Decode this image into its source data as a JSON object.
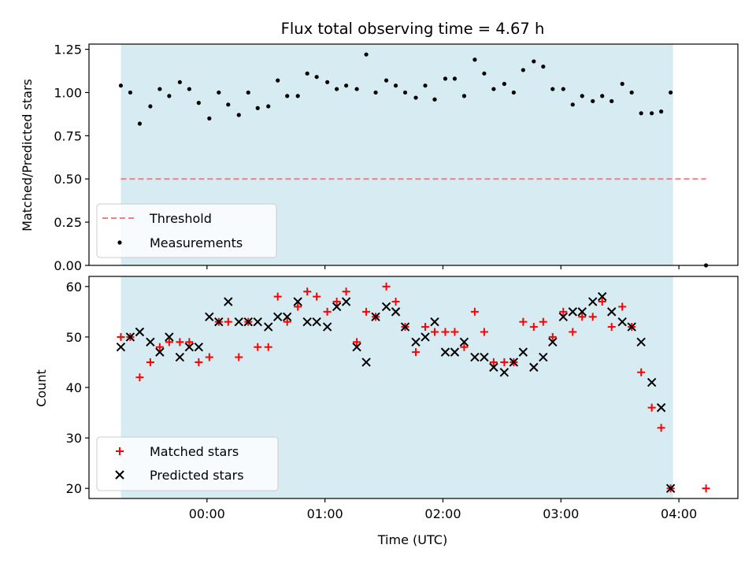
{
  "chart_data": [
    {
      "type": "scatter",
      "title": "Flux total observing time = 4.67 h",
      "ylabel": "Matched/Predicted stars",
      "xlabel": "",
      "ylim": [
        0,
        1.28
      ],
      "yticks": [
        "0.00",
        "0.25",
        "0.50",
        "0.75",
        "1.00",
        "1.25"
      ],
      "shaded_region_color": "#add8e6",
      "grid": false,
      "legend": "lower-left",
      "series": [
        {
          "name": "Threshold",
          "style": "dashed-line",
          "color": "#f08080",
          "x_start_h": -0.73,
          "x_end_h": 4.23,
          "value": 0.5
        },
        {
          "name": "Measurements",
          "style": "dot",
          "color": "#000000",
          "points": [
            [
              -0.73,
              1.04
            ],
            [
              -0.65,
              1.0
            ],
            [
              -0.57,
              0.82
            ],
            [
              -0.48,
              0.92
            ],
            [
              -0.4,
              1.02
            ],
            [
              -0.32,
              0.98
            ],
            [
              -0.23,
              1.06
            ],
            [
              -0.15,
              1.02
            ],
            [
              -0.07,
              0.94
            ],
            [
              0.02,
              0.85
            ],
            [
              0.1,
              1.0
            ],
            [
              0.18,
              0.93
            ],
            [
              0.27,
              0.87
            ],
            [
              0.35,
              1.0
            ],
            [
              0.43,
              0.91
            ],
            [
              0.52,
              0.92
            ],
            [
              0.6,
              1.07
            ],
            [
              0.68,
              0.98
            ],
            [
              0.77,
              0.98
            ],
            [
              0.85,
              1.11
            ],
            [
              0.93,
              1.09
            ],
            [
              1.02,
              1.06
            ],
            [
              1.1,
              1.02
            ],
            [
              1.18,
              1.04
            ],
            [
              1.27,
              1.02
            ],
            [
              1.35,
              1.22
            ],
            [
              1.43,
              1.0
            ],
            [
              1.52,
              1.07
            ],
            [
              1.6,
              1.04
            ],
            [
              1.68,
              1.0
            ],
            [
              1.77,
              0.97
            ],
            [
              1.85,
              1.04
            ],
            [
              1.93,
              0.96
            ],
            [
              2.02,
              1.08
            ],
            [
              2.1,
              1.08
            ],
            [
              2.18,
              0.98
            ],
            [
              2.27,
              1.19
            ],
            [
              2.35,
              1.11
            ],
            [
              2.43,
              1.02
            ],
            [
              2.52,
              1.05
            ],
            [
              2.6,
              1.0
            ],
            [
              2.68,
              1.13
            ],
            [
              2.77,
              1.18
            ],
            [
              2.85,
              1.15
            ],
            [
              2.93,
              1.02
            ],
            [
              3.02,
              1.02
            ],
            [
              3.1,
              0.93
            ],
            [
              3.18,
              0.98
            ],
            [
              3.27,
              0.95
            ],
            [
              3.35,
              0.98
            ],
            [
              3.43,
              0.95
            ],
            [
              3.52,
              1.05
            ],
            [
              3.6,
              1.0
            ],
            [
              3.68,
              0.88
            ],
            [
              3.77,
              0.88
            ],
            [
              3.85,
              0.89
            ],
            [
              3.93,
              1.0
            ],
            [
              4.23,
              0.0
            ]
          ]
        }
      ]
    },
    {
      "type": "scatter",
      "title": "",
      "ylabel": "Count",
      "xlabel": "Time (UTC)",
      "ylim": [
        18,
        62
      ],
      "yticks": [
        "20",
        "30",
        "40",
        "50",
        "60"
      ],
      "x_range_h": [
        -1.0,
        4.5
      ],
      "x_ticks_h": [
        0,
        1,
        2,
        3,
        4
      ],
      "x_tick_labels": [
        "00:00",
        "01:00",
        "02:00",
        "03:00",
        "04:00"
      ],
      "shaded_region_h": [
        -0.73,
        3.95
      ],
      "shaded_region_color": "#add8e6",
      "grid": false,
      "legend": "lower-left",
      "series": [
        {
          "name": "Matched stars",
          "style": "plus",
          "color": "#ff0000",
          "points": [
            [
              -0.73,
              50
            ],
            [
              -0.65,
              50
            ],
            [
              -0.57,
              42
            ],
            [
              -0.48,
              45
            ],
            [
              -0.4,
              48
            ],
            [
              -0.32,
              49
            ],
            [
              -0.23,
              49
            ],
            [
              -0.15,
              49
            ],
            [
              -0.07,
              45
            ],
            [
              0.02,
              46
            ],
            [
              0.1,
              53
            ],
            [
              0.18,
              53
            ],
            [
              0.27,
              46
            ],
            [
              0.35,
              53
            ],
            [
              0.43,
              48
            ],
            [
              0.52,
              48
            ],
            [
              0.6,
              58
            ],
            [
              0.68,
              53
            ],
            [
              0.77,
              56
            ],
            [
              0.85,
              59
            ],
            [
              0.93,
              58
            ],
            [
              1.02,
              55
            ],
            [
              1.1,
              57
            ],
            [
              1.18,
              59
            ],
            [
              1.27,
              49
            ],
            [
              1.35,
              55
            ],
            [
              1.43,
              54
            ],
            [
              1.52,
              60
            ],
            [
              1.6,
              57
            ],
            [
              1.68,
              52
            ],
            [
              1.77,
              47
            ],
            [
              1.85,
              52
            ],
            [
              1.93,
              51
            ],
            [
              2.02,
              51
            ],
            [
              2.1,
              51
            ],
            [
              2.18,
              48
            ],
            [
              2.27,
              55
            ],
            [
              2.35,
              51
            ],
            [
              2.43,
              45
            ],
            [
              2.52,
              45
            ],
            [
              2.6,
              45
            ],
            [
              2.68,
              53
            ],
            [
              2.77,
              52
            ],
            [
              2.85,
              53
            ],
            [
              2.93,
              50
            ],
            [
              3.02,
              55
            ],
            [
              3.1,
              51
            ],
            [
              3.18,
              54
            ],
            [
              3.27,
              54
            ],
            [
              3.35,
              57
            ],
            [
              3.43,
              52
            ],
            [
              3.52,
              56
            ],
            [
              3.6,
              52
            ],
            [
              3.68,
              43
            ],
            [
              3.77,
              36
            ],
            [
              3.85,
              32
            ],
            [
              3.93,
              20
            ],
            [
              4.23,
              20
            ]
          ]
        },
        {
          "name": "Predicted stars",
          "style": "x",
          "color": "#000000",
          "points": [
            [
              -0.73,
              48
            ],
            [
              -0.65,
              50
            ],
            [
              -0.57,
              51
            ],
            [
              -0.48,
              49
            ],
            [
              -0.4,
              47
            ],
            [
              -0.32,
              50
            ],
            [
              -0.23,
              46
            ],
            [
              -0.15,
              48
            ],
            [
              -0.07,
              48
            ],
            [
              0.02,
              54
            ],
            [
              0.1,
              53
            ],
            [
              0.18,
              57
            ],
            [
              0.27,
              53
            ],
            [
              0.35,
              53
            ],
            [
              0.43,
              53
            ],
            [
              0.52,
              52
            ],
            [
              0.6,
              54
            ],
            [
              0.68,
              54
            ],
            [
              0.77,
              57
            ],
            [
              0.85,
              53
            ],
            [
              0.93,
              53
            ],
            [
              1.02,
              52
            ],
            [
              1.1,
              56
            ],
            [
              1.18,
              57
            ],
            [
              1.27,
              48
            ],
            [
              1.35,
              45
            ],
            [
              1.43,
              54
            ],
            [
              1.52,
              56
            ],
            [
              1.6,
              55
            ],
            [
              1.68,
              52
            ],
            [
              1.77,
              49
            ],
            [
              1.85,
              50
            ],
            [
              1.93,
              53
            ],
            [
              2.02,
              47
            ],
            [
              2.1,
              47
            ],
            [
              2.18,
              49
            ],
            [
              2.27,
              46
            ],
            [
              2.35,
              46
            ],
            [
              2.43,
              44
            ],
            [
              2.52,
              43
            ],
            [
              2.6,
              45
            ],
            [
              2.68,
              47
            ],
            [
              2.77,
              44
            ],
            [
              2.85,
              46
            ],
            [
              2.93,
              49
            ],
            [
              3.02,
              54
            ],
            [
              3.1,
              55
            ],
            [
              3.18,
              55
            ],
            [
              3.27,
              57
            ],
            [
              3.35,
              58
            ],
            [
              3.43,
              55
            ],
            [
              3.52,
              53
            ],
            [
              3.6,
              52
            ],
            [
              3.68,
              49
            ],
            [
              3.77,
              41
            ],
            [
              3.85,
              36
            ],
            [
              3.93,
              20
            ]
          ]
        }
      ]
    }
  ]
}
